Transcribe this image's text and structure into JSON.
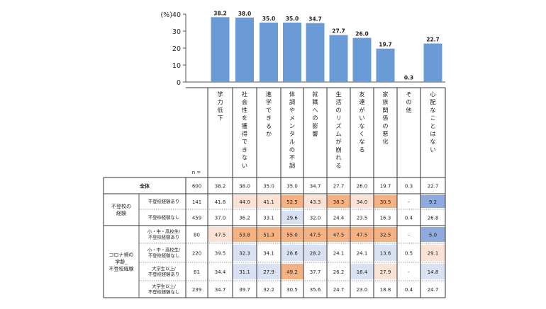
{
  "chart_data": {
    "type": "bar",
    "y_unit_label": "(%)",
    "ylim": [
      0,
      40
    ],
    "yticks": [
      0,
      10,
      20,
      30,
      40
    ],
    "categories": [
      "学力低下",
      "社会性を獲得できない",
      "進学できるか",
      "体調やメンタルの不調",
      "就職への影響",
      "生活のリズムが崩れる",
      "友達がいなくなる",
      "家族関係の悪化",
      "その他",
      "心配なことはない"
    ],
    "series": [
      {
        "values": [
          38.2,
          38.0,
          35.0,
          35.0,
          34.7,
          27.7,
          26.0,
          19.7,
          0.3,
          22.7
        ]
      }
    ],
    "value_labels": [
      "38.2",
      "38.0",
      "35.0",
      "35.0",
      "34.7",
      "27.7",
      "26.0",
      "19.7",
      "0.3",
      "22.7"
    ],
    "bar_color": "#6a9bd6",
    "table": {
      "n_label": "n =",
      "groups": [
        {
          "label": "",
          "rows": [
            {
              "label": "全体",
              "n": "600",
              "values": [
                "38.2",
                "38.0",
                "35.0",
                "35.0",
                "34.7",
                "27.7",
                "26.0",
                "19.7",
                "0.3",
                "22.7"
              ],
              "shades": [
                "",
                "",
                "",
                "",
                "",
                "",
                "",
                "",
                "",
                ""
              ]
            }
          ]
        },
        {
          "label": "不登校の\n経験",
          "rows": [
            {
              "label": "不登校経験あり",
              "n": "141",
              "values": [
                "41.8",
                "44.0",
                "41.1",
                "52.5",
                "43.3",
                "38.3",
                "34.0",
                "30.5",
                "-",
                "9.2"
              ],
              "shades": [
                "",
                "o1",
                "o1",
                "o3",
                "o1",
                "o3",
                "o1",
                "o3",
                "",
                "b3"
              ]
            },
            {
              "label": "不登校経験なし",
              "n": "459",
              "values": [
                "37.0",
                "36.2",
                "33.1",
                "29.6",
                "32.0",
                "24.4",
                "23.5",
                "16.3",
                "0.4",
                "26.8"
              ],
              "shades": [
                "",
                "",
                "",
                "b1",
                "",
                "",
                "",
                "",
                "",
                ""
              ]
            }
          ]
        },
        {
          "label": "コロナ禍の\n学齢_\n不登校経験",
          "rows": [
            {
              "label": "小・中・高校生/\n不登校経験あり",
              "n": "80",
              "values": [
                "47.5",
                "53.8",
                "51.3",
                "55.0",
                "47.5",
                "47.5",
                "47.5",
                "32.5",
                "-",
                "5.0"
              ],
              "shades": [
                "o1",
                "o3",
                "o3",
                "o3",
                "o3",
                "o3",
                "o3",
                "o3",
                "",
                "b3"
              ]
            },
            {
              "label": "小・中・高校生/\n不登校経験なし",
              "n": "220",
              "values": [
                "39.5",
                "32.3",
                "34.1",
                "28.6",
                "28.2",
                "24.1",
                "24.1",
                "13.6",
                "0.5",
                "29.1"
              ],
              "shades": [
                "",
                "b1",
                "",
                "b1",
                "b1",
                "",
                "",
                "b1",
                "",
                "o1"
              ]
            },
            {
              "label": "大学生以上/\n不登校経験あり",
              "n": "61",
              "values": [
                "34.4",
                "31.1",
                "27.9",
                "49.2",
                "37.7",
                "26.2",
                "16.4",
                "27.9",
                "-",
                "14.8"
              ],
              "shades": [
                "",
                "b1",
                "b1",
                "o3",
                "",
                "",
                "b1",
                "o1",
                "",
                "b1"
              ]
            },
            {
              "label": "大学生以上/\n不登校経験なし",
              "n": "239",
              "values": [
                "34.7",
                "39.7",
                "32.2",
                "30.5",
                "35.6",
                "24.7",
                "23.0",
                "18.8",
                "0.4",
                "24.7"
              ],
              "shades": [
                "",
                "",
                "",
                "",
                "",
                "",
                "",
                "",
                "",
                ""
              ]
            }
          ]
        }
      ]
    },
    "shade_colors": {
      "o1": "#fbe2d5",
      "o3": "#f4b183",
      "b1": "#dae1f3",
      "b3": "#8faadc"
    }
  }
}
